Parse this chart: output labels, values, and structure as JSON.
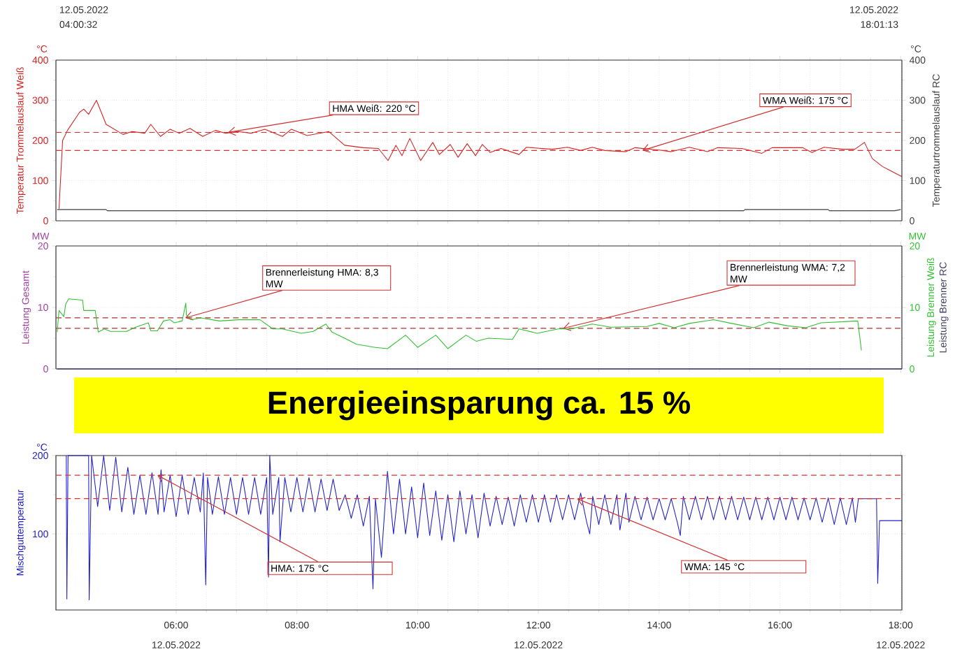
{
  "chart_data": [
    {
      "type": "line",
      "ylabel": "Temperatur Trommelauslauf Weiß",
      "y2label": "Temperaturtrommelauslauf RC",
      "xlim": [
        4.009,
        18.02
      ],
      "xticks": [
        {
          "value": 6,
          "label": null
        },
        {
          "value": 8,
          "label": null
        },
        {
          "value": 10,
          "label": null
        },
        {
          "value": 12,
          "label": null
        },
        {
          "value": 14,
          "label": null
        },
        {
          "value": 16,
          "label": null
        },
        {
          "value": 18,
          "label": null
        }
      ],
      "ylim": [
        0,
        400
      ],
      "yticks": [
        0,
        100,
        200,
        300,
        400
      ],
      "y2lim": [
        0,
        400
      ],
      "y2ticks": [
        0,
        100,
        200,
        300,
        400
      ],
      "tick_labels": "y",
      "grid": true,
      "series": [
        {
          "color": "#d42020",
          "x": [
            4.06,
            4.12,
            4.2,
            4.4,
            4.47,
            4.55,
            4.68,
            4.84,
            5.12,
            5.27,
            5.48,
            5.58,
            5.74,
            5.9,
            6.05,
            6.23,
            6.44,
            6.65,
            6.82,
            7.03,
            7.24,
            7.47,
            7.76,
            7.91,
            8.17,
            8.53,
            8.79,
            9.1,
            9.35,
            9.51,
            9.64,
            9.74,
            9.87,
            10.05,
            10.25,
            10.36,
            10.54,
            10.67,
            10.82,
            10.96,
            11.07,
            11.2,
            11.38,
            11.68,
            11.8,
            12.23,
            12.48,
            12.7,
            12.89,
            13.1,
            13.45,
            13.6,
            14.0,
            14.2,
            14.5,
            14.8,
            14.97,
            15.37,
            15.7,
            15.87,
            16.38,
            16.53,
            16.73,
            17.04,
            17.24,
            17.4,
            17.53,
            17.7,
            18.02
          ],
          "values": [
            30,
            200,
            225,
            270,
            278,
            265,
            300,
            240,
            215,
            222,
            218,
            240,
            210,
            228,
            218,
            230,
            210,
            225,
            218,
            222,
            218,
            228,
            210,
            228,
            212,
            222,
            188,
            182,
            180,
            150,
            188,
            162,
            205,
            150,
            195,
            165,
            190,
            158,
            192,
            162,
            190,
            170,
            180,
            165,
            183,
            178,
            183,
            175,
            183,
            175,
            172,
            182,
            176,
            172,
            183,
            172,
            182,
            180,
            168,
            182,
            182,
            170,
            183,
            178,
            178,
            195,
            155,
            135,
            110
          ]
        },
        {
          "color": "#404040",
          "axis": "y2",
          "x": [
            4.03,
            4.84,
            4.86,
            15.4,
            15.42,
            16.8,
            16.82,
            17.9,
            18.0
          ],
          "values": [
            28,
            28,
            25,
            25,
            28,
            28,
            25,
            25,
            28
          ]
        }
      ],
      "ref_lines": [
        {
          "axis": "y",
          "value": 220,
          "color": "#e03030",
          "line_style": "dashed"
        },
        {
          "axis": "y",
          "value": 175,
          "color": "#e03030",
          "line_style": "dashed"
        }
      ],
      "annotations": [
        "12.05.2022",
        "04:00:32",
        "12.05.2022",
        "18:01:13",
        "°C",
        "°C",
        {
          "text": "HMA Weiß: 220 °C",
          "x": 6.86,
          "y": 220
        },
        {
          "text": "WMA Weiß: 175 °C",
          "x": 13.72,
          "y": 175
        }
      ]
    },
    {
      "type": "line",
      "ylabel": "Leistung Gesamt",
      "y2label": "Leistung Brenner Weiß",
      "xlim": [
        4.009,
        18.02
      ],
      "xticks": [
        {
          "value": 6,
          "label": null
        },
        {
          "value": 8,
          "label": null
        },
        {
          "value": 10,
          "label": null
        },
        {
          "value": 12,
          "label": null
        },
        {
          "value": 14,
          "label": null
        },
        {
          "value": 16,
          "label": null
        },
        {
          "value": 18,
          "label": null
        }
      ],
      "ylim": [
        0,
        20
      ],
      "yticks": [
        0,
        10,
        20
      ],
      "y2lim": [
        0,
        20
      ],
      "y2ticks": [
        0,
        10,
        20
      ],
      "tick_labels": "y",
      "grid": true,
      "series": [
        {
          "color": "#30c030",
          "axis": "y2",
          "x": [
            4.03,
            4.06,
            4.14,
            4.17,
            4.22,
            4.45,
            4.47,
            4.66,
            4.71,
            4.81,
            4.91,
            5.18,
            5.33,
            5.54,
            5.58,
            5.69,
            5.79,
            5.9,
            5.97,
            6.1,
            6.16,
            6.17,
            6.25,
            6.41,
            6.72,
            7.03,
            7.39,
            7.6,
            7.76,
            8.07,
            8.27,
            8.48,
            8.58,
            8.79,
            8.99,
            9.3,
            9.5,
            9.8,
            10.0,
            10.3,
            10.5,
            10.8,
            10.97,
            11.17,
            11.57,
            11.68,
            11.98,
            12.33,
            12.54,
            12.89,
            13.2,
            13.8,
            14.0,
            14.25,
            14.5,
            14.9,
            15.2,
            15.57,
            15.82,
            16.13,
            16.43,
            16.68,
            17.29,
            17.35
          ],
          "values": [
            6,
            9.5,
            8.5,
            10.5,
            11.4,
            11.2,
            9.5,
            9.5,
            6,
            6.5,
            6.1,
            6.1,
            6.8,
            7.5,
            6.2,
            6.2,
            7.8,
            8.0,
            7.5,
            7.8,
            10.7,
            8.8,
            8.0,
            8.3,
            7.8,
            8.0,
            8.0,
            6.5,
            6.5,
            5.8,
            6.1,
            7.3,
            6.0,
            5.0,
            4.0,
            3.5,
            3.3,
            5.5,
            3.5,
            5.5,
            3.3,
            5.5,
            4.5,
            5.0,
            4.8,
            6.5,
            5.8,
            6.5,
            6.5,
            7.3,
            6.8,
            6.9,
            7.4,
            6.7,
            7.4,
            8.0,
            7.4,
            6.7,
            7.6,
            7.0,
            6.7,
            7.5,
            7.8,
            3.0
          ]
        },
        {
          "color": "#202070",
          "x": [
            4.03,
            18.02
          ],
          "values": [
            0,
            0
          ]
        }
      ],
      "ref_lines": [
        {
          "axis": "y",
          "value": 8.3,
          "color": "#b03030",
          "line_style": "dashed"
        },
        {
          "axis": "y",
          "value": 6.6,
          "color": "#b03030",
          "line_style": "dashed"
        }
      ],
      "annotations": [
        "MW",
        "MW",
        "Energieeinsparung ca. 15 %",
        "Leistung Brenner RC",
        {
          "text": "Brennerleistung HMA: 8,3 MW",
          "x": 6.15,
          "y": 8.3
        },
        {
          "text": "Brennerleistung WMA: 7,2 MW",
          "x": 12.41,
          "y": 6.6
        }
      ]
    },
    {
      "type": "line",
      "ylabel": "Mischguttemperatur",
      "xlim": [
        4.009,
        18.02
      ],
      "xticks": [
        {
          "value": 6,
          "label": "06:00"
        },
        {
          "value": 8,
          "label": "08:00"
        },
        {
          "value": 10,
          "label": "10:00"
        },
        {
          "value": 12,
          "label": "12:00"
        },
        {
          "value": 14,
          "label": "14:00"
        },
        {
          "value": 16,
          "label": "16:00"
        },
        {
          "value": 18,
          "label": "18:00"
        }
      ],
      "ylim": [
        3,
        200
      ],
      "yticks": [
        100,
        200
      ],
      "grid": true,
      "series": [
        {
          "color": "#2020c8",
          "x": [
            4.18,
            4.19,
            4.21,
            4.55,
            4.56,
            4.6,
            4.7,
            4.8,
            4.9,
            5.0,
            5.1,
            5.2,
            5.3,
            5.4,
            5.5,
            5.6,
            5.7,
            5.75,
            5.8,
            5.9,
            6.0,
            6.1,
            6.2,
            6.3,
            6.4,
            6.45,
            6.49,
            6.52,
            6.6,
            6.7,
            6.8,
            6.9,
            7.0,
            7.1,
            7.2,
            7.3,
            7.4,
            7.5,
            7.53,
            7.55,
            7.6,
            7.7,
            7.72,
            7.8,
            7.9,
            8.0,
            8.1,
            8.2,
            8.3,
            8.4,
            8.5,
            8.6,
            8.7,
            8.8,
            8.9,
            9.0,
            9.1,
            9.2,
            9.26,
            9.3,
            9.4,
            9.5,
            9.6,
            9.7,
            9.8,
            9.9,
            10.0,
            10.1,
            10.2,
            10.3,
            10.4,
            10.5,
            10.6,
            10.7,
            10.8,
            10.9,
            11.0,
            11.1,
            11.2,
            11.3,
            11.4,
            11.5,
            11.6,
            11.7,
            11.8,
            11.9,
            12.0,
            12.1,
            12.2,
            12.3,
            12.4,
            12.5,
            12.6,
            12.7,
            12.8,
            12.85,
            12.9,
            13.0,
            13.1,
            13.2,
            13.3,
            13.35,
            13.45,
            13.5,
            13.6,
            13.7,
            13.8,
            13.9,
            14.0,
            14.1,
            14.2,
            14.3,
            14.35,
            14.4,
            14.5,
            14.6,
            14.7,
            14.8,
            14.9,
            15.0,
            15.1,
            15.2,
            15.3,
            15.4,
            15.5,
            15.6,
            15.7,
            15.8,
            15.9,
            16.0,
            16.1,
            16.2,
            16.3,
            16.4,
            16.5,
            16.6,
            16.7,
            16.8,
            16.9,
            17.0,
            17.1,
            17.2,
            17.25,
            17.3,
            17.6,
            17.62,
            17.65,
            18.02
          ],
          "values": [
            200,
            17,
            200,
            200,
            16,
            200,
            135,
            200,
            130,
            198,
            128,
            185,
            125,
            175,
            125,
            178,
            125,
            182,
            128,
            175,
            122,
            175,
            125,
            172,
            128,
            178,
            35,
            172,
            125,
            173,
            125,
            172,
            125,
            172,
            125,
            172,
            125,
            172,
            45,
            200,
            125,
            172,
            90,
            172,
            128,
            172,
            128,
            172,
            128,
            170,
            130,
            170,
            130,
            150,
            120,
            150,
            110,
            148,
            30,
            145,
            70,
            180,
            100,
            170,
            100,
            160,
            95,
            165,
            98,
            155,
            92,
            150,
            90,
            155,
            100,
            150,
            95,
            152,
            110,
            148,
            112,
            147,
            110,
            150,
            115,
            150,
            115,
            150,
            115,
            150,
            118,
            150,
            118,
            152,
            115,
            100,
            148,
            112,
            150,
            112,
            150,
            105,
            152,
            115,
            148,
            118,
            147,
            118,
            145,
            118,
            145,
            115,
            98,
            148,
            118,
            148,
            118,
            148,
            118,
            148,
            118,
            148,
            118,
            147,
            118,
            147,
            118,
            147,
            118,
            147,
            118,
            147,
            118,
            146,
            118,
            146,
            115,
            146,
            112,
            146,
            112,
            146,
            115,
            145,
            145,
            37,
            117,
            117
          ]
        }
      ],
      "ref_lines": [
        {
          "axis": "y",
          "value": 175,
          "color": "#e03030",
          "line_style": "dashed"
        },
        {
          "axis": "y",
          "value": 145,
          "color": "#e03030",
          "line_style": "dashed"
        }
      ],
      "annotations": [
        "°C",
        {
          "text": "HMA: 175 °C",
          "x": 5.69,
          "y": 175
        },
        {
          "text": "WMA: 145 °C",
          "x": 12.64,
          "y": 145
        },
        "12.05.2022",
        "12.05.2022",
        "12.05.2022"
      ]
    }
  ]
}
